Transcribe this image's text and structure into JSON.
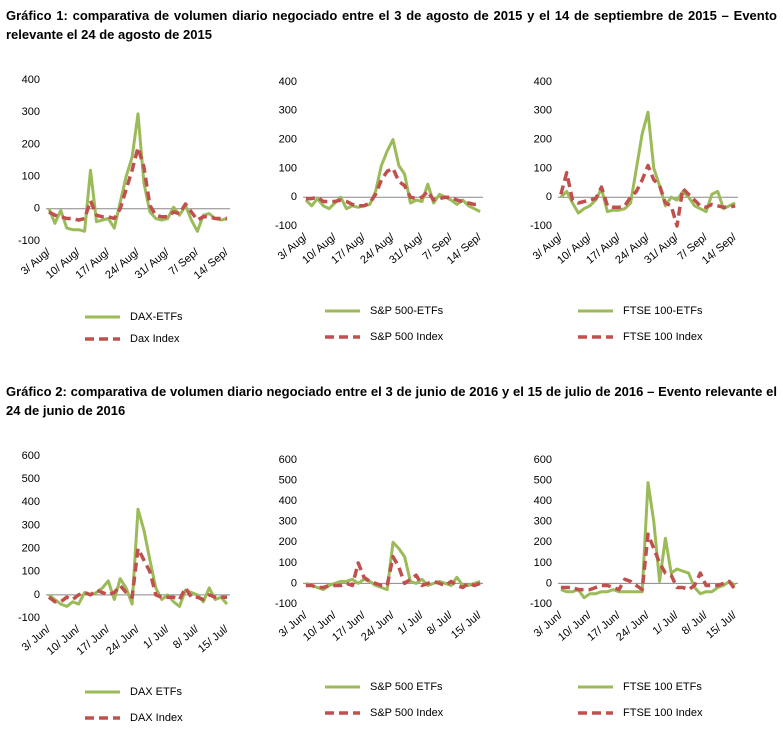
{
  "captions": [
    "Gráfico 1: comparativa de volumen diario negociado entre el 3 de agosto de 2015 y el 14 de septiembre de 2015 – Evento relevante el 24 de agosto de 2015",
    "Gráfico 2: comparativa de volumen diario negociado entre el 3 de junio de 2016 y el 15 de julio de 2016 – Evento relevante el 24 de junio de 2016"
  ],
  "chart_data": [
    {
      "type": "line",
      "ylim": [
        -100,
        400
      ],
      "yticks": [
        -100,
        0,
        100,
        200,
        300,
        400
      ],
      "categories": [
        "3/ Aug/",
        null,
        null,
        null,
        null,
        "10/ Aug/",
        null,
        null,
        null,
        null,
        "17/ Aug/",
        null,
        null,
        null,
        null,
        "24/ Aug/",
        null,
        null,
        null,
        null,
        "31/ Aug/",
        null,
        null,
        null,
        null,
        "7/ Sep/",
        null,
        null,
        null,
        null,
        "14/ Sep/"
      ],
      "series": [
        {
          "name": "DAX-ETFs",
          "color": "#9bbb59",
          "style": "solid",
          "values": [
            0,
            -45,
            -5,
            -60,
            -65,
            -65,
            -70,
            120,
            -40,
            -35,
            -30,
            -60,
            20,
            100,
            160,
            295,
            80,
            -10,
            -30,
            -35,
            -30,
            5,
            -20,
            10,
            -35,
            -70,
            -20,
            -15,
            -30,
            -35,
            -30
          ]
        },
        {
          "name": "Dax Index",
          "color": "#c0504d",
          "style": "dashed",
          "values": [
            -10,
            -20,
            -25,
            -30,
            -30,
            -35,
            -30,
            25,
            -20,
            -25,
            -25,
            -30,
            0,
            60,
            120,
            190,
            130,
            10,
            -20,
            -25,
            -25,
            -10,
            -15,
            15,
            -10,
            -35,
            -25,
            -25,
            -30,
            -30,
            -30
          ]
        }
      ]
    },
    {
      "type": "line",
      "ylim": [
        -100,
        400
      ],
      "yticks": [
        -100,
        0,
        100,
        200,
        300,
        400
      ],
      "categories": [
        "3/ Aug/",
        null,
        null,
        null,
        null,
        "10/ Aug/",
        null,
        null,
        null,
        null,
        "17/ Aug/",
        null,
        null,
        null,
        null,
        "24/ Aug/",
        null,
        null,
        null,
        null,
        "31/ Aug/",
        null,
        null,
        null,
        null,
        "7/ Sep/",
        null,
        null,
        null,
        null,
        "14/ Sep/"
      ],
      "series": [
        {
          "name": "S&P 500-ETFs",
          "color": "#9bbb59",
          "style": "solid",
          "values": [
            -10,
            -30,
            -5,
            -30,
            -40,
            -20,
            0,
            -40,
            -30,
            -35,
            -30,
            -25,
            20,
            110,
            160,
            200,
            110,
            80,
            -20,
            -10,
            -15,
            45,
            -20,
            10,
            0,
            -10,
            -25,
            -10,
            -30,
            -40,
            -50
          ]
        },
        {
          "name": "S&P 500 Index",
          "color": "#c0504d",
          "style": "dashed",
          "values": [
            -5,
            -5,
            0,
            -15,
            -15,
            -15,
            -10,
            -15,
            -25,
            -30,
            -30,
            -20,
            10,
            60,
            90,
            100,
            55,
            40,
            0,
            -5,
            0,
            20,
            -10,
            -5,
            0,
            0,
            -10,
            -15,
            -20,
            -25,
            -25
          ]
        }
      ]
    },
    {
      "type": "line",
      "ylim": [
        -100,
        400
      ],
      "yticks": [
        -100,
        0,
        100,
        200,
        300,
        400
      ],
      "categories": [
        "3/ Aug/",
        null,
        null,
        null,
        null,
        "10/ Aug/",
        null,
        null,
        null,
        null,
        "17/ Aug/",
        null,
        null,
        null,
        null,
        "24/ Aug/",
        null,
        null,
        null,
        null,
        "31/ Aug/",
        null,
        null,
        null,
        null,
        "7/ Sep/",
        null,
        null,
        null,
        null,
        "14/ Sep/"
      ],
      "series": [
        {
          "name": "FTSE 100-ETFs",
          "color": "#9bbb59",
          "style": "solid",
          "values": [
            0,
            20,
            -20,
            -55,
            -40,
            -30,
            -10,
            30,
            -50,
            -45,
            -45,
            -40,
            -20,
            100,
            220,
            295,
            100,
            40,
            -30,
            0,
            -10,
            20,
            0,
            -30,
            -40,
            -50,
            10,
            20,
            -40,
            -30,
            -20
          ]
        },
        {
          "name": "FTSE 100 Index",
          "color": "#c0504d",
          "style": "dashed",
          "values": [
            10,
            85,
            -10,
            -20,
            -15,
            -10,
            -5,
            35,
            -30,
            -35,
            -35,
            -30,
            0,
            20,
            60,
            110,
            60,
            40,
            -20,
            -30,
            -100,
            30,
            10,
            -10,
            -30,
            -35,
            -25,
            -30,
            -35,
            -35,
            -30
          ]
        }
      ]
    },
    {
      "type": "line",
      "ylim": [
        -100,
        600
      ],
      "yticks": [
        -100,
        0,
        100,
        200,
        300,
        400,
        500,
        600
      ],
      "categories": [
        "3/ Jun/",
        null,
        null,
        null,
        null,
        "10/ Jun/",
        null,
        null,
        null,
        null,
        "17/ Jun/",
        null,
        null,
        null,
        null,
        "24/ Jun/",
        null,
        null,
        null,
        null,
        "1/ Jul/",
        null,
        null,
        null,
        null,
        "8/ Jul/",
        null,
        null,
        null,
        null,
        "15/ Jul/"
      ],
      "series": [
        {
          "name": "DAX ETFs",
          "color": "#9bbb59",
          "style": "solid",
          "values": [
            0,
            -20,
            -40,
            -50,
            -30,
            -40,
            10,
            0,
            10,
            30,
            60,
            -20,
            70,
            30,
            -40,
            370,
            280,
            150,
            30,
            -20,
            0,
            -30,
            -50,
            20,
            10,
            0,
            -30,
            30,
            -20,
            -10,
            -40
          ]
        },
        {
          "name": "DAX Index",
          "color": "#c0504d",
          "style": "dashed",
          "values": [
            -10,
            -30,
            -30,
            -10,
            -20,
            0,
            10,
            0,
            20,
            10,
            0,
            10,
            40,
            10,
            -10,
            200,
            150,
            100,
            0,
            -10,
            -10,
            -10,
            -20,
            30,
            -10,
            -10,
            -20,
            0,
            -10,
            -10,
            -10
          ]
        }
      ]
    },
    {
      "type": "line",
      "ylim": [
        -100,
        600
      ],
      "yticks": [
        -100,
        0,
        100,
        200,
        300,
        400,
        500,
        600
      ],
      "categories": [
        "3/ Jun/",
        null,
        null,
        null,
        null,
        "10/ Jun/",
        null,
        null,
        null,
        null,
        "17/ Jun/",
        null,
        null,
        null,
        null,
        "24/ Jun/",
        null,
        null,
        null,
        null,
        "1/ Jul/",
        null,
        null,
        null,
        null,
        "8/ Jul/",
        null,
        null,
        null,
        null,
        "15/ Jul/"
      ],
      "series": [
        {
          "name": "S&P 500 ETFs",
          "color": "#9bbb59",
          "style": "solid",
          "values": [
            0,
            -10,
            -20,
            -30,
            -10,
            0,
            10,
            10,
            20,
            0,
            20,
            10,
            -10,
            -20,
            -30,
            200,
            170,
            130,
            10,
            0,
            20,
            -10,
            0,
            10,
            0,
            -10,
            30,
            -10,
            -10,
            0,
            10
          ]
        },
        {
          "name": "S&P 500 Index",
          "color": "#c0504d",
          "style": "dashed",
          "values": [
            -10,
            -10,
            -20,
            -20,
            -10,
            -10,
            -10,
            0,
            -10,
            100,
            30,
            10,
            0,
            -10,
            -10,
            130,
            80,
            0,
            20,
            40,
            -10,
            0,
            10,
            0,
            -10,
            10,
            -10,
            -20,
            0,
            -10,
            0
          ]
        }
      ]
    },
    {
      "type": "line",
      "ylim": [
        -100,
        600
      ],
      "yticks": [
        -100,
        0,
        100,
        200,
        300,
        400,
        500,
        600
      ],
      "categories": [
        "3/ Jun/",
        null,
        null,
        null,
        null,
        "10/ Jun/",
        null,
        null,
        null,
        null,
        "17/ Jun/",
        null,
        null,
        null,
        null,
        "24/ Jun/",
        null,
        null,
        null,
        null,
        "1/ Jul/",
        null,
        null,
        null,
        null,
        "8/ Jul/",
        null,
        null,
        null,
        null,
        "15/ Jul/"
      ],
      "series": [
        {
          "name": "FTSE 100 ETFs",
          "color": "#9bbb59",
          "style": "solid",
          "values": [
            -30,
            -40,
            -40,
            -30,
            -70,
            -50,
            -50,
            -40,
            -40,
            -30,
            -40,
            -40,
            -40,
            -40,
            -40,
            490,
            300,
            10,
            220,
            50,
            70,
            60,
            50,
            -20,
            -50,
            -40,
            -40,
            -20,
            -10,
            10,
            -10
          ]
        },
        {
          "name": "FTSE 100 Index",
          "color": "#c0504d",
          "style": "dashed",
          "values": [
            -20,
            -20,
            -20,
            -30,
            -30,
            -30,
            -20,
            -10,
            -10,
            -20,
            -30,
            20,
            10,
            -10,
            -30,
            240,
            170,
            100,
            50,
            40,
            -20,
            -20,
            -30,
            -10,
            50,
            -10,
            -10,
            -10,
            0,
            10,
            -30
          ]
        }
      ]
    }
  ]
}
